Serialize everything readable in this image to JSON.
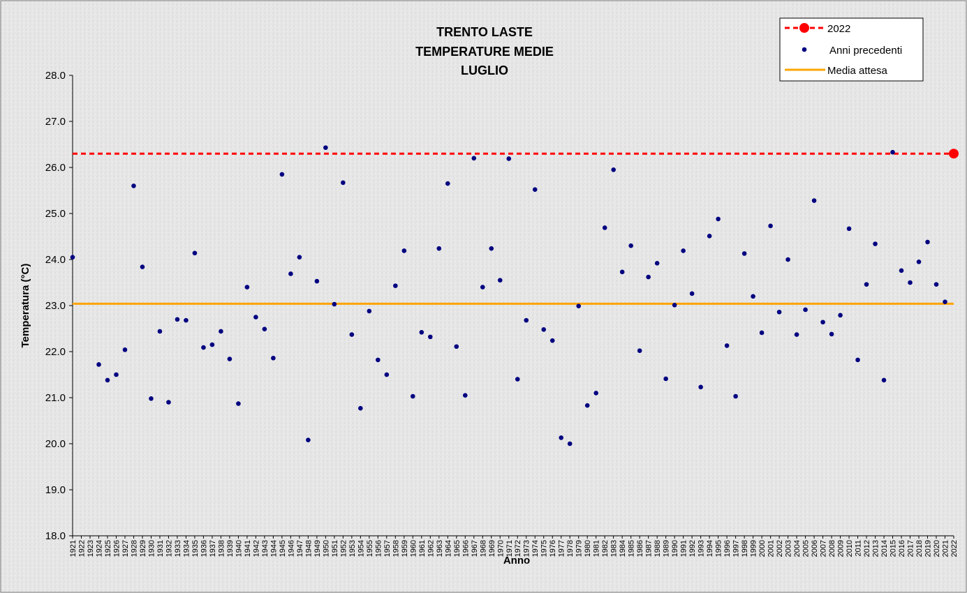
{
  "chart_data": {
    "type": "scatter",
    "title_lines": [
      "TRENTO LASTE",
      "TEMPERATURE MEDIE",
      "LUGLIO"
    ],
    "xlabel": "Anno",
    "ylabel": "Temperatura (°C)",
    "ylim": [
      18.0,
      28.0
    ],
    "y_ticks": [
      "18.0",
      "19.0",
      "20.0",
      "21.0",
      "22.0",
      "23.0",
      "24.0",
      "25.0",
      "26.0",
      "27.0",
      "28.0"
    ],
    "x_categories": [
      1921,
      1922,
      1923,
      1924,
      1925,
      1926,
      1927,
      1928,
      1929,
      1930,
      1931,
      1932,
      1933,
      1934,
      1935,
      1936,
      1937,
      1938,
      1939,
      1940,
      1941,
      1942,
      1943,
      1944,
      1945,
      1946,
      1947,
      1948,
      1949,
      1950,
      1951,
      1952,
      1953,
      1954,
      1955,
      1956,
      1957,
      1958,
      1959,
      1960,
      1961,
      1962,
      1963,
      1964,
      1965,
      1966,
      1967,
      1968,
      1969,
      1970,
      1971,
      1972,
      1973,
      1974,
      1975,
      1976,
      1977,
      1978,
      1979,
      1980,
      1981,
      1982,
      1983,
      1984,
      1985,
      1986,
      1987,
      1988,
      1989,
      1990,
      1991,
      1992,
      1993,
      1994,
      1995,
      1996,
      1997,
      1998,
      1999,
      2000,
      2001,
      2002,
      2003,
      2004,
      2005,
      2006,
      2007,
      2008,
      2009,
      2010,
      2011,
      2012,
      2013,
      2014,
      2015,
      2016,
      2017,
      2018,
      2019,
      2020,
      2021,
      2022
    ],
    "grid": false,
    "legend_position": "top-right",
    "series": [
      {
        "name": "2022",
        "kind": "highlight-point-and-dashed-line",
        "color": "#ff0000",
        "x": [
          2022
        ],
        "y": [
          26.3
        ]
      },
      {
        "name": "Anni precedenti",
        "kind": "points",
        "color": "#000080",
        "x": [
          1921,
          1924,
          1925,
          1926,
          1927,
          1928,
          1929,
          1930,
          1931,
          1932,
          1933,
          1934,
          1935,
          1936,
          1937,
          1938,
          1939,
          1940,
          1941,
          1942,
          1943,
          1944,
          1945,
          1946,
          1947,
          1948,
          1949,
          1950,
          1951,
          1952,
          1953,
          1954,
          1955,
          1956,
          1957,
          1958,
          1959,
          1960,
          1961,
          1962,
          1963,
          1964,
          1965,
          1966,
          1967,
          1968,
          1969,
          1970,
          1971,
          1972,
          1973,
          1974,
          1975,
          1976,
          1977,
          1978,
          1979,
          1980,
          1981,
          1982,
          1983,
          1984,
          1985,
          1986,
          1987,
          1988,
          1989,
          1990,
          1991,
          1992,
          1993,
          1994,
          1995,
          1996,
          1997,
          1998,
          1999,
          2000,
          2001,
          2002,
          2003,
          2004,
          2005,
          2006,
          2007,
          2008,
          2009,
          2010,
          2011,
          2012,
          2013,
          2014,
          2015,
          2016,
          2017,
          2018,
          2019,
          2020,
          2021
        ],
        "y": [
          24.05,
          21.72,
          21.38,
          21.5,
          22.04,
          25.6,
          23.84,
          20.98,
          22.44,
          20.9,
          22.7,
          22.68,
          24.14,
          22.09,
          22.15,
          22.44,
          21.84,
          20.87,
          23.4,
          22.75,
          22.49,
          21.86,
          25.85,
          23.69,
          24.05,
          20.08,
          23.53,
          26.43,
          23.03,
          25.67,
          22.37,
          20.77,
          22.88,
          21.82,
          21.5,
          23.43,
          24.19,
          21.03,
          22.42,
          22.32,
          24.24,
          25.65,
          22.11,
          21.05,
          26.2,
          23.4,
          24.24,
          23.55,
          26.19,
          21.4,
          22.68,
          25.52,
          22.48,
          22.24,
          20.13,
          20.0,
          22.99,
          20.83,
          21.1,
          24.69,
          25.95,
          23.73,
          24.3,
          22.02,
          23.62,
          23.92,
          21.41,
          23.01,
          24.19,
          23.26,
          21.23,
          24.51,
          24.88,
          22.13,
          21.03,
          24.13,
          23.2,
          22.41,
          24.73,
          22.86,
          24.0,
          22.37,
          22.91,
          25.28,
          22.64,
          22.38,
          22.79,
          24.67,
          21.82,
          23.46,
          24.34,
          21.38,
          26.33,
          23.76,
          23.5,
          23.95,
          24.38,
          23.46,
          23.08
        ]
      },
      {
        "name": "Media attesa",
        "kind": "horizontal-line",
        "color": "#ffa500",
        "y": 23.04
      }
    ]
  }
}
